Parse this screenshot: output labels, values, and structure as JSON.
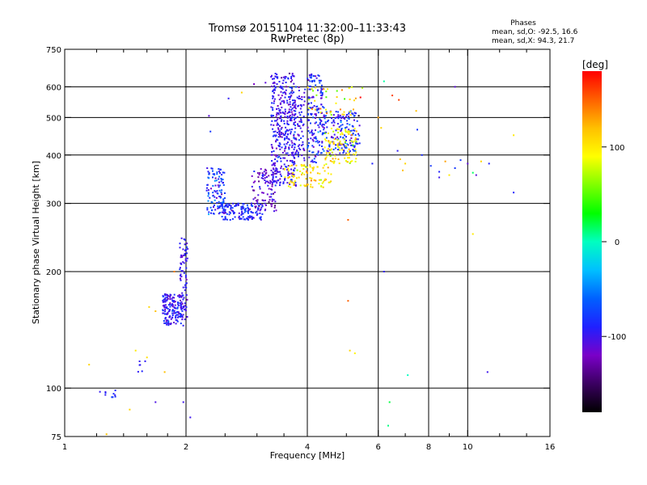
{
  "chart_data": {
    "type": "scatter",
    "title": "Tromsø 20151104 11:32:00–11:33:43",
    "subtitle": "RwPretec (8p)",
    "xlabel": "Frequency [MHz]",
    "ylabel": "Stationary phase Virtual Height [km]",
    "x_scale": "log",
    "y_scale": "log",
    "xlim": [
      1,
      16
    ],
    "ylim": [
      75,
      750
    ],
    "x_ticks": [
      1,
      2,
      4,
      6,
      8,
      10,
      16
    ],
    "y_ticks": [
      75,
      100,
      200,
      300,
      400,
      500,
      600,
      750
    ],
    "x_minor_ticks": [
      1.2,
      1.4,
      1.6,
      1.8,
      2.5,
      3,
      3.5,
      5,
      7,
      9,
      12,
      14
    ],
    "grid_x": [
      2,
      4,
      6,
      8,
      10
    ],
    "grid_y": [
      100,
      200,
      300,
      400,
      500,
      600
    ],
    "phases_header": "Phases",
    "phases_lines": [
      "mean, sd,O: -92.5, 16.6",
      "mean, sd,X:  94.3, 21.7"
    ],
    "colorbar": {
      "label": "[deg]",
      "range": [
        -180,
        180
      ],
      "ticks": [
        100,
        0,
        -100
      ],
      "colors": [
        "#000000",
        "#3a0060",
        "#7a00c8",
        "#2020ff",
        "#0060ff",
        "#00c0ff",
        "#00ffc0",
        "#00ff00",
        "#80ff00",
        "#ffff00",
        "#ffc000",
        "#ff6000",
        "#ff0000"
      ]
    },
    "clusters": [
      {
        "fmin": 1.75,
        "fmax": 1.97,
        "hmin": 145,
        "hmax": 175,
        "n": 160,
        "phase": -95,
        "sd": 15
      },
      {
        "fmin": 1.93,
        "fmax": 2.02,
        "hmin": 150,
        "hmax": 245,
        "n": 80,
        "phase": -98,
        "sd": 12
      },
      {
        "fmin": 2.25,
        "fmax": 2.5,
        "hmin": 280,
        "hmax": 370,
        "n": 110,
        "phase": -80,
        "sd": 18
      },
      {
        "fmin": 2.45,
        "fmax": 3.1,
        "hmin": 272,
        "hmax": 300,
        "n": 140,
        "phase": -88,
        "sd": 14
      },
      {
        "fmin": 2.9,
        "fmax": 3.35,
        "hmin": 285,
        "hmax": 370,
        "n": 90,
        "phase": -110,
        "sd": 15
      },
      {
        "fmin": 3.25,
        "fmax": 3.75,
        "hmin": 330,
        "hmax": 650,
        "n": 380,
        "phase": -100,
        "sd": 14
      },
      {
        "fmin": 3.7,
        "fmax": 3.95,
        "hmin": 380,
        "hmax": 600,
        "n": 80,
        "phase": -95,
        "sd": 15
      },
      {
        "fmin": 4.0,
        "fmax": 4.4,
        "hmin": 380,
        "hmax": 650,
        "n": 160,
        "phase": -90,
        "sd": 18
      },
      {
        "fmin": 4.4,
        "fmax": 5.4,
        "hmin": 400,
        "hmax": 520,
        "n": 160,
        "phase": -85,
        "sd": 20
      },
      {
        "fmin": 3.5,
        "fmax": 4.6,
        "hmin": 330,
        "hmax": 380,
        "n": 90,
        "phase": 105,
        "sd": 15
      },
      {
        "fmin": 4.4,
        "fmax": 5.3,
        "hmin": 380,
        "hmax": 470,
        "n": 100,
        "phase": 95,
        "sd": 18
      },
      {
        "fmin": 4.0,
        "fmax": 5.5,
        "hmin": 500,
        "hmax": 600,
        "n": 40,
        "phase": 100,
        "sd": 35
      },
      {
        "fmin": 1.2,
        "fmax": 1.35,
        "hmin": 94,
        "hmax": 99,
        "n": 10,
        "phase": -90,
        "sd": 10
      },
      {
        "fmin": 1.5,
        "fmax": 1.6,
        "hmin": 110,
        "hmax": 118,
        "n": 6,
        "phase": -95,
        "sd": 10
      }
    ],
    "sparse_points": [
      [
        1.15,
        115,
        110
      ],
      [
        1.27,
        76,
        120
      ],
      [
        1.45,
        88,
        110
      ],
      [
        1.5,
        125,
        100
      ],
      [
        1.6,
        120,
        105
      ],
      [
        1.68,
        92,
        -105
      ],
      [
        1.68,
        158,
        120
      ],
      [
        1.62,
        162,
        110
      ],
      [
        1.77,
        110,
        120
      ],
      [
        1.87,
        200,
        140
      ],
      [
        1.97,
        92,
        -100
      ],
      [
        2.05,
        84,
        -100
      ],
      [
        2.28,
        505,
        -110
      ],
      [
        2.3,
        460,
        -80
      ],
      [
        2.55,
        560,
        -95
      ],
      [
        2.75,
        580,
        110
      ],
      [
        2.95,
        610,
        -120
      ],
      [
        3.15,
        615,
        -110
      ],
      [
        5.05,
        272,
        150
      ],
      [
        5.05,
        168,
        150
      ],
      [
        5.1,
        125,
        110
      ],
      [
        5.25,
        123,
        95
      ],
      [
        6.2,
        200,
        -95
      ],
      [
        6.4,
        92,
        20
      ],
      [
        6.35,
        80,
        10
      ],
      [
        7.1,
        108,
        0
      ],
      [
        6.2,
        620,
        5
      ],
      [
        6.5,
        570,
        160
      ],
      [
        6.75,
        555,
        160
      ],
      [
        7.45,
        520,
        120
      ],
      [
        6.8,
        390,
        120
      ],
      [
        6.9,
        365,
        120
      ],
      [
        7.5,
        465,
        -80
      ],
      [
        8.1,
        375,
        -80
      ],
      [
        8.5,
        362,
        -90
      ],
      [
        8.8,
        385,
        130
      ],
      [
        9.0,
        355,
        100
      ],
      [
        9.3,
        370,
        -80
      ],
      [
        9.6,
        388,
        -80
      ],
      [
        10.0,
        380,
        -110
      ],
      [
        10.3,
        360,
        15
      ],
      [
        10.5,
        355,
        -110
      ],
      [
        10.8,
        385,
        110
      ],
      [
        11.3,
        380,
        -90
      ],
      [
        11.2,
        110,
        -100
      ],
      [
        13.0,
        450,
        100
      ],
      [
        13.0,
        320,
        -90
      ],
      [
        9.3,
        600,
        -110
      ],
      [
        6.7,
        410,
        -95
      ],
      [
        7.0,
        380,
        110
      ],
      [
        10.3,
        250,
        100
      ],
      [
        8.5,
        350,
        -100
      ],
      [
        7.7,
        400,
        -85
      ],
      [
        6.0,
        500,
        130
      ],
      [
        5.8,
        380,
        -90
      ],
      [
        6.1,
        470,
        110
      ]
    ]
  }
}
